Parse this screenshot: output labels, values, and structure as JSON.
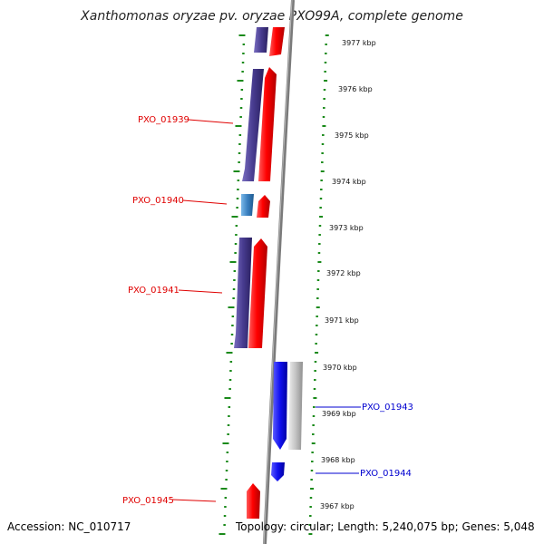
{
  "title": "Xanthomonas oryzae pv. oryzae PXO99A, complete genome",
  "accession": "Accession: NC_010717",
  "topology": "Topology: circular; Length: 5,240,075 bp; Genes: 5,048",
  "colors": {
    "forward_cds": "#ff1010",
    "reverse_cds_dark": "#4a3d8f",
    "reverse_cds_light": "#3a7fc0",
    "blue_cds": "#1515ee",
    "grey_cds": "#c8c8c8",
    "backbone": "#808080",
    "tick_green": "#1a8a1a",
    "label_red": "#e00000",
    "label_blue": "#0000d0"
  },
  "scale_ticks": [
    "3977 kbp",
    "3976 kbp",
    "3975 kbp",
    "3974 kbp",
    "3973 kbp",
    "3972 kbp",
    "3971 kbp",
    "3970 kbp",
    "3969 kbp",
    "3968 kbp",
    "3967 kbp"
  ],
  "gene_labels": [
    {
      "name": "PXO_01939",
      "color": "red"
    },
    {
      "name": "PXO_01940",
      "color": "red"
    },
    {
      "name": "PXO_01941",
      "color": "red"
    },
    {
      "name": "PXO_01943",
      "color": "blue"
    },
    {
      "name": "PXO_01944",
      "color": "blue"
    },
    {
      "name": "PXO_01945",
      "color": "red"
    }
  ]
}
